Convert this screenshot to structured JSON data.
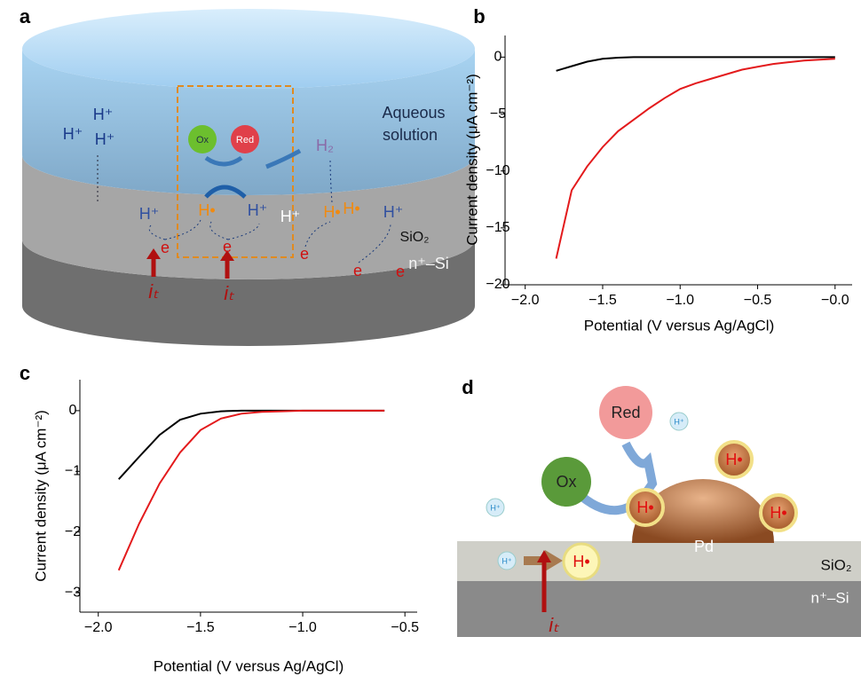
{
  "panel_labels": [
    "a",
    "b",
    "c",
    "d"
  ],
  "diagram_a": {
    "aqueous_solution": [
      "Aqueous",
      "solution"
    ],
    "labels": [
      "H⁺",
      "H⁺",
      "H⁺",
      "Ox",
      "Red",
      "H₂",
      "H⁺",
      "H•",
      "H⁺",
      "H⁺",
      "H•",
      "H•",
      "H⁺",
      "e",
      "e",
      "e",
      "e",
      "e",
      "SiO₂",
      "n⁺–Si",
      "iₜ",
      "iₜ"
    ]
  },
  "diagram_d": {
    "labels": [
      "Red",
      "H⁺",
      "Ox",
      "H•",
      "H•",
      "H•",
      "Pd",
      "H⁺",
      "H⁺",
      "H•",
      "SiO₂",
      "n⁺–Si",
      "iₜ"
    ]
  },
  "chart_data": [
    {
      "type": "line",
      "xlabel": "Potential (V versus Ag/AgCl)",
      "ylabel": "Current density (μA cm⁻²)",
      "x": [
        -1.8,
        -1.7,
        -1.6,
        -1.5,
        -1.4,
        -1.3,
        -1.2,
        -1.1,
        -1.0,
        -0.9,
        -0.8,
        -0.7,
        -0.6,
        -0.5,
        -0.4,
        -0.3,
        -0.2,
        -0.1,
        0.0
      ],
      "series": [
        {
          "color": "#000000",
          "values": [
            -1.2,
            -0.8,
            -0.4,
            -0.15,
            -0.05,
            0,
            0,
            0,
            0,
            0,
            0,
            0,
            0,
            0,
            0,
            0,
            0,
            0,
            0
          ]
        },
        {
          "color": "#e31a1c",
          "values": [
            -17.7,
            -11.7,
            -9.6,
            -7.9,
            -6.5,
            -5.5,
            -4.5,
            -3.6,
            -2.8,
            -2.3,
            -1.9,
            -1.5,
            -1.1,
            -0.85,
            -0.6,
            -0.45,
            -0.3,
            -0.22,
            -0.15
          ]
        }
      ],
      "xlim": [
        -2.13,
        0.11
      ],
      "ylim": [
        -20,
        1.9
      ],
      "xticks": [
        {
          "value": -2.0,
          "label": "−2.0"
        },
        {
          "value": -1.5,
          "label": "−1.5"
        },
        {
          "value": -1.0,
          "label": "−1.0"
        },
        {
          "value": -0.5,
          "label": "−0.5"
        },
        {
          "value": 0.0,
          "label": "−0.0"
        }
      ],
      "yticks": [
        0,
        {
          "value": -5,
          "label": "−5"
        },
        {
          "value": -10,
          "label": "−10"
        },
        {
          "value": -15,
          "label": "−15"
        },
        {
          "value": -20,
          "label": "−20"
        }
      ]
    },
    {
      "type": "line",
      "xlabel": "Potential (V versus Ag/AgCl)",
      "ylabel": "Current density (μA cm⁻²)",
      "x": [
        -1.9,
        -1.8,
        -1.7,
        -1.6,
        -1.5,
        -1.4,
        -1.3,
        -1.2,
        -1.1,
        -1.0,
        -0.9,
        -0.8,
        -0.7,
        -0.6
      ],
      "series": [
        {
          "color": "#000000",
          "values": [
            -1.13,
            -0.76,
            -0.4,
            -0.15,
            -0.05,
            -0.01,
            0,
            0,
            0,
            0,
            0,
            0,
            0,
            0
          ]
        },
        {
          "color": "#e31a1c",
          "values": [
            -2.63,
            -1.86,
            -1.2,
            -0.69,
            -0.32,
            -0.13,
            -0.05,
            -0.02,
            -0.01,
            0,
            0,
            0,
            0,
            0
          ]
        }
      ],
      "xlim": [
        -2.09,
        -0.44
      ],
      "ylim": [
        -3.32,
        0.51
      ],
      "xticks": [
        {
          "value": -2.0,
          "label": "−2.0"
        },
        {
          "value": -1.5,
          "label": "−1.5"
        },
        {
          "value": -1.0,
          "label": "−1.0"
        },
        {
          "value": -0.5,
          "label": "−0.5"
        }
      ],
      "yticks": [
        0,
        {
          "value": -1,
          "label": "−1"
        },
        {
          "value": -2,
          "label": "−2"
        },
        {
          "value": -3,
          "label": "−3"
        }
      ]
    }
  ]
}
